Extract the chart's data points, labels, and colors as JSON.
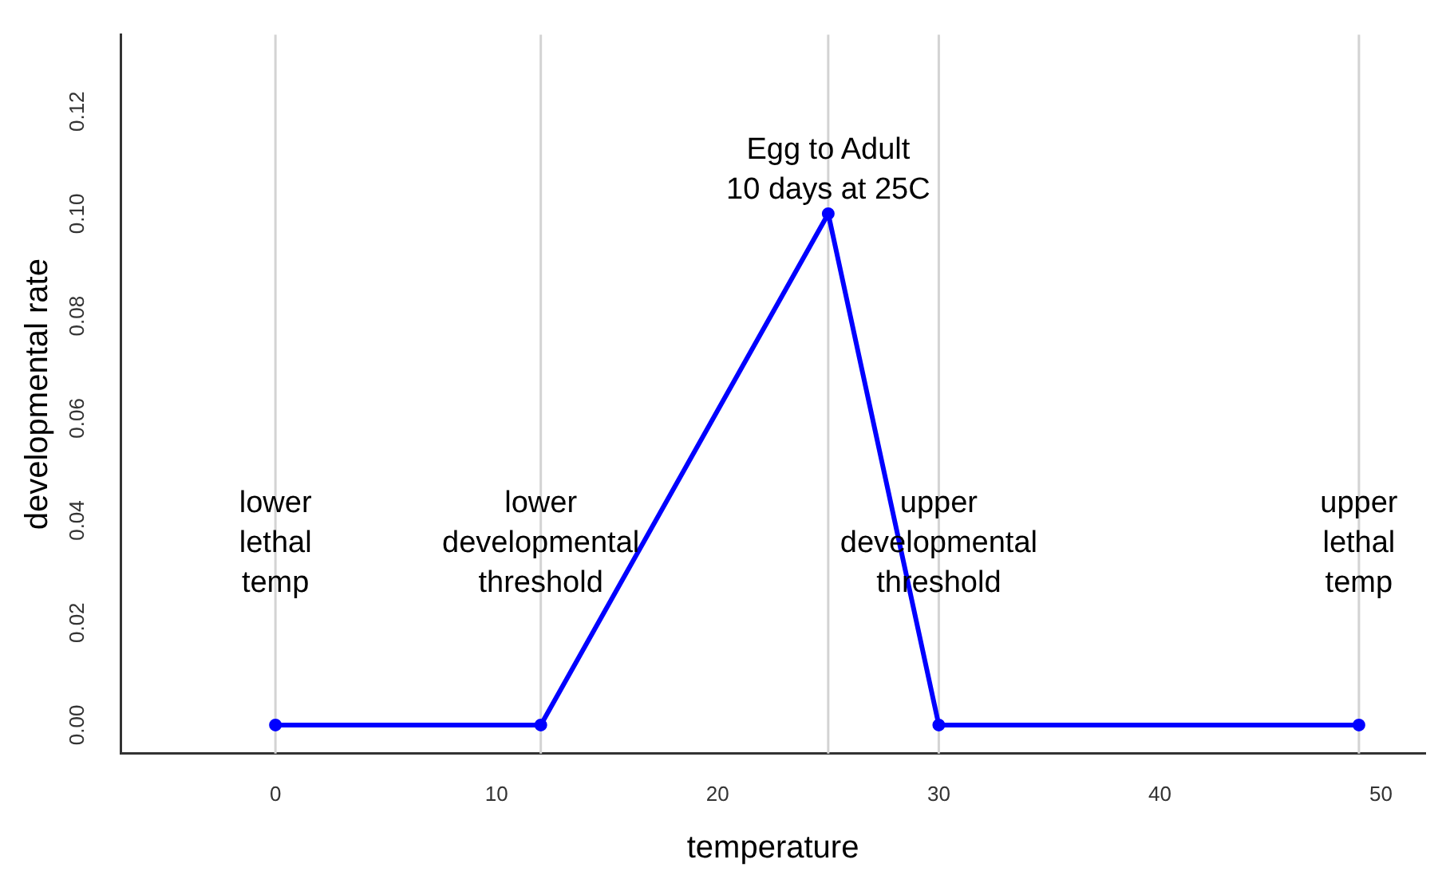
{
  "chart_data": {
    "type": "line",
    "xlabel": "temperature",
    "ylabel": "developmental rate",
    "x": [
      0,
      12,
      25,
      30,
      49
    ],
    "series": [
      {
        "color": "#0000ff",
        "values": [
          0,
          0,
          0.1,
          0,
          0
        ]
      }
    ],
    "xlim": [
      -7,
      52
    ],
    "xticks": [
      0,
      10,
      20,
      30,
      40,
      50
    ],
    "ylim": [
      -0.0056,
      0.135
    ],
    "yticks": [
      {
        "value": 0,
        "label": "0.00"
      },
      0.02,
      0.04,
      0.06,
      0.08,
      {
        "value": 0.1,
        "label": "0.10"
      },
      0.12
    ],
    "ref_lines": [
      {
        "axis": "x",
        "value": 0,
        "color": "#d3d3d3"
      },
      {
        "axis": "x",
        "value": 12,
        "color": "#d3d3d3"
      },
      {
        "axis": "x",
        "value": 25,
        "color": "#d3d3d3"
      },
      {
        "axis": "x",
        "value": 30,
        "color": "#d3d3d3"
      },
      {
        "axis": "x",
        "value": 49,
        "color": "#d3d3d3"
      }
    ],
    "annotations": [
      {
        "text": "lower\nlethal\ntemp",
        "x": 0,
        "y": 0.0355
      },
      {
        "text": "lower\ndevelopmental\nthreshold",
        "x": 12,
        "y": 0.0355
      },
      {
        "text": "upper\ndevelopmental\nthreshold",
        "x": 30,
        "y": 0.0355
      },
      {
        "text": "upper\nlethal\ntemp",
        "x": 49,
        "y": 0.0355
      },
      {
        "text": "Egg to Adult\n10 days at 25C",
        "x": 25,
        "y": 0.1085
      }
    ],
    "grid": false,
    "legend": false,
    "marker": "circle",
    "line_style": "solid"
  }
}
